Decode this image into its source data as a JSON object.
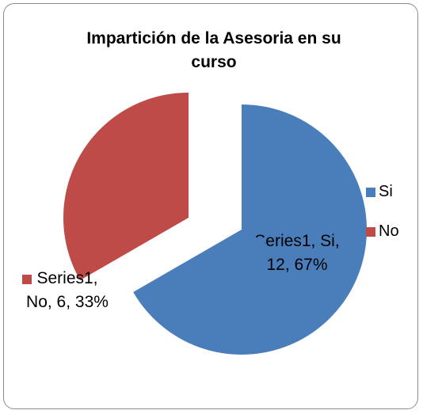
{
  "chart_data": {
    "type": "pie",
    "title": "Impartición de la Asesoria en su curso",
    "categories": [
      "Si",
      "No"
    ],
    "colors": [
      "#4a7ebb",
      "#be4b48"
    ],
    "series": [
      {
        "name": "Series1",
        "values": [
          12,
          6
        ],
        "value_labels": [
          "Series1, Si, 12, 67%",
          "Series1, No, 6, 33%"
        ]
      }
    ],
    "legend": "right"
  }
}
